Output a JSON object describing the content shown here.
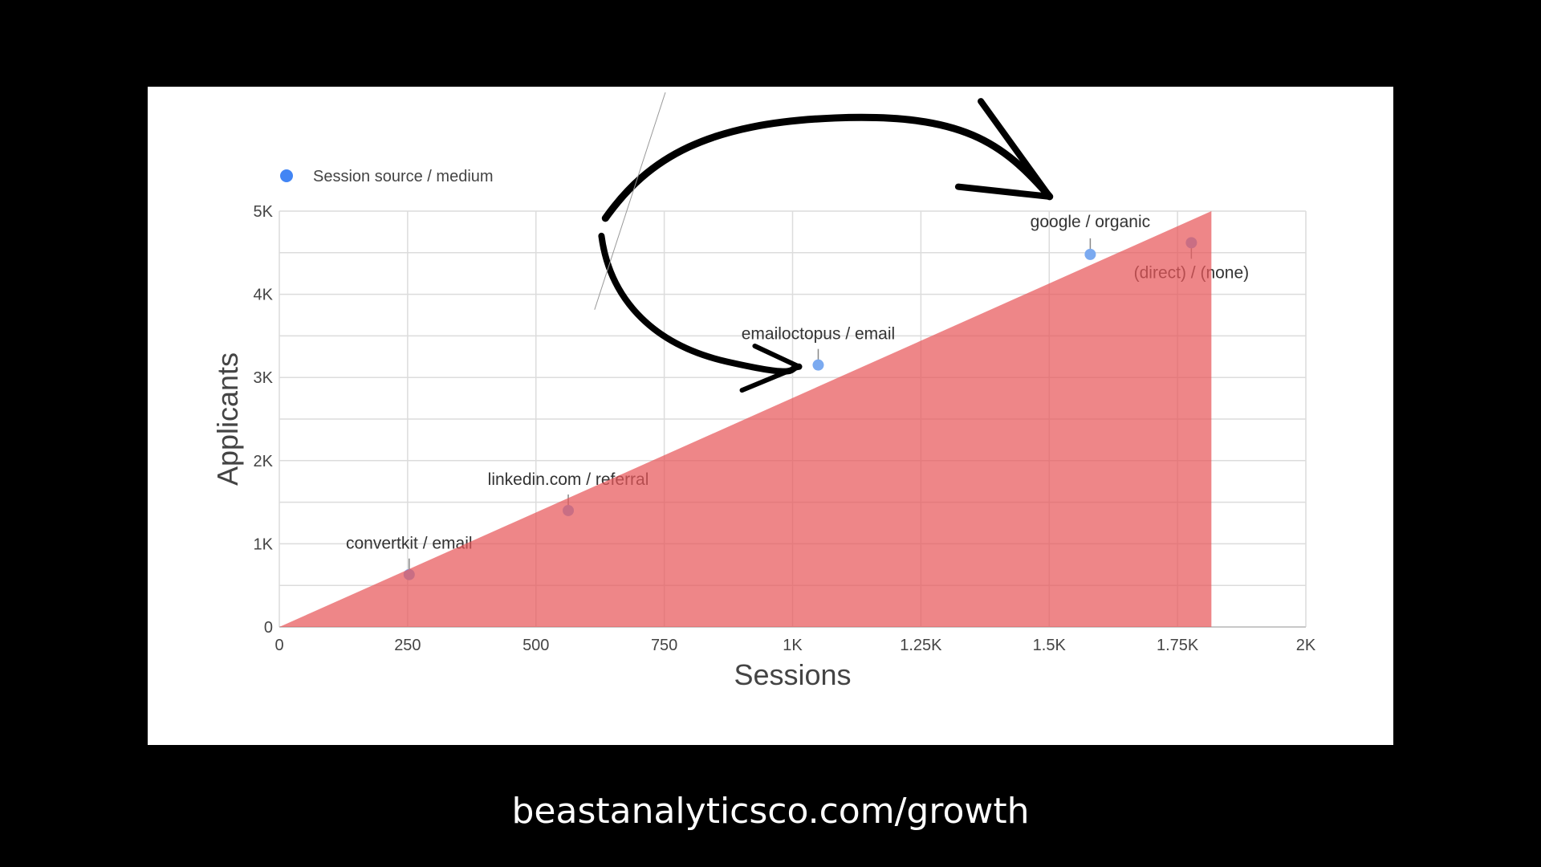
{
  "chart_data": {
    "type": "scatter",
    "legend": {
      "label": "Session source / medium",
      "position": "top-left",
      "color": "#4285f4"
    },
    "xlabel": "Sessions",
    "ylabel": "Applicants",
    "xlim": [
      0,
      2000
    ],
    "ylim": [
      0,
      5000
    ],
    "xticks": [
      "0",
      "250",
      "500",
      "750",
      "1K",
      "1.25K",
      "1.5K",
      "1.75K",
      "2K"
    ],
    "xtick_values": [
      0,
      250,
      500,
      750,
      1000,
      1250,
      1500,
      1750,
      2000
    ],
    "yticks": [
      "0",
      "1K",
      "2K",
      "3K",
      "4K",
      "5K"
    ],
    "ytick_values": [
      0,
      1000,
      2000,
      3000,
      4000,
      5000
    ],
    "grid": true,
    "points": [
      {
        "label": "convertkit / email",
        "x": 253,
        "y": 630
      },
      {
        "label": "linkedin.com / referral",
        "x": 563,
        "y": 1400
      },
      {
        "label": "emailoctopus / email",
        "x": 1050,
        "y": 3150
      },
      {
        "label": "google / organic",
        "x": 1580,
        "y": 4480
      },
      {
        "label": "(direct) / (none)",
        "x": 1777,
        "y": 4620
      }
    ],
    "overlay_area": {
      "vertices": [
        [
          0,
          0
        ],
        [
          1816,
          5000
        ],
        [
          1816,
          0
        ]
      ],
      "color": "#e8585a"
    },
    "annotation": "hand-drawn arrow from google / organic to emailoctopus / email"
  },
  "footer": {
    "url": "beastanalyticsco.com/growth"
  }
}
